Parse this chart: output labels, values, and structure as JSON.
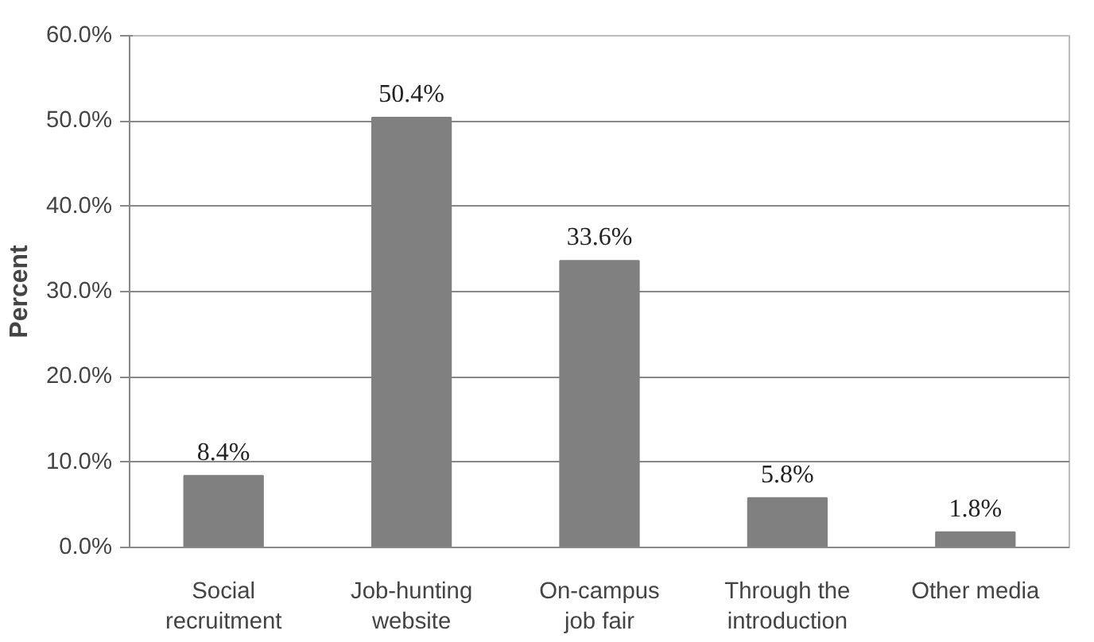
{
  "chart_data": {
    "type": "bar",
    "ylabel": "Percent",
    "categories": [
      "Social\nrecruitment",
      "Job-hunting\nwebsite",
      "On-campus\njob fair",
      "Through the\nintroduction",
      "Other media"
    ],
    "values": [
      8.4,
      50.4,
      33.6,
      5.8,
      1.8
    ],
    "value_labels": [
      "8.4%",
      "50.4%",
      "33.6%",
      "5.8%",
      "1.8%"
    ],
    "color": "#808080",
    "ylim": [
      0,
      60
    ],
    "yticks": [
      {
        "value": 0,
        "label": "0.0%"
      },
      {
        "value": 10,
        "label": "10.0%"
      },
      {
        "value": 20,
        "label": "20.0%"
      },
      {
        "value": 30,
        "label": "30.0%"
      },
      {
        "value": 40,
        "label": "40.0%"
      },
      {
        "value": 50,
        "label": "50.0%"
      },
      {
        "value": 60,
        "label": "60.0%"
      }
    ],
    "grid": "y"
  }
}
